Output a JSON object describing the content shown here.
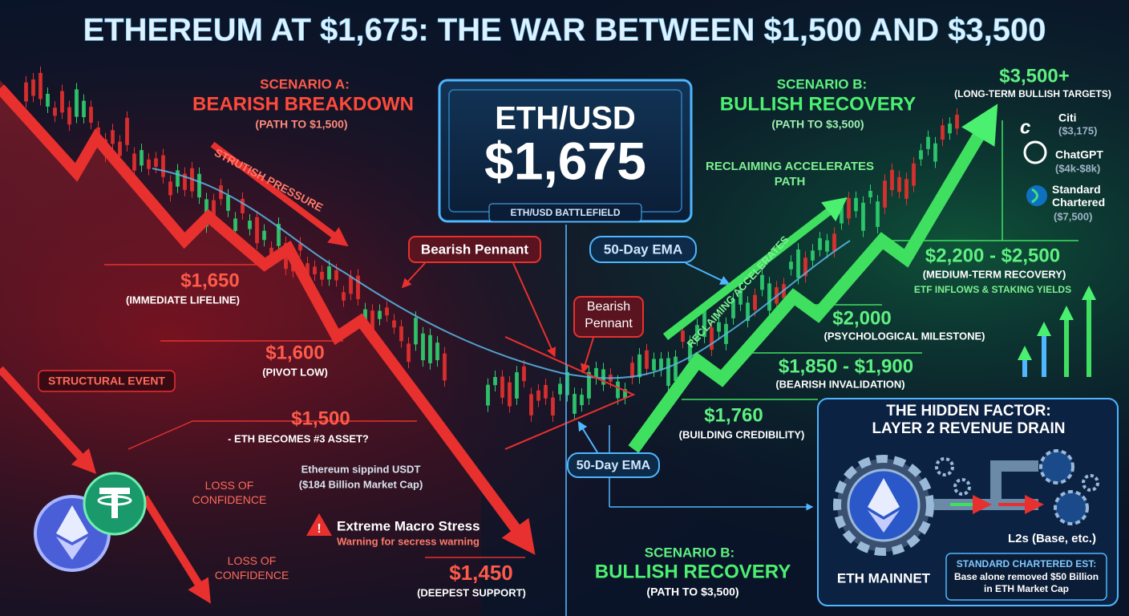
{
  "title": "ETHEREUM AT $1,675: THE WAR BETWEEN $1,500 AND $3,500",
  "scenario_a": {
    "label": "SCENARIO A:",
    "title": "BEARISH BREAKDOWN",
    "subtitle": "(PATH TO $1,500)",
    "pressure": "STRUTISH PRESSURE"
  },
  "price_box": {
    "pair": "ETH/USD",
    "price": "$1,675",
    "caption": "ETH/USD BATTLEFIELD"
  },
  "scenario_b_top": {
    "label": "SCENARIO B:",
    "title": "BULLISH RECOVERY",
    "subtitle": "(PATH TO $3,500)",
    "reclaiming": "RECLAIMING ACCELERATES PATH",
    "diagonal": "RECLAIMING ACCELERATES"
  },
  "targets": {
    "price": "$3,500+",
    "note": "(LONG-TERM BULLISH TARGETS)",
    "sources": [
      {
        "name": "Citi",
        "value": "($3,175)"
      },
      {
        "name": "ChatGPT",
        "value": "($4k-$8k)"
      },
      {
        "name": "Standard Chartered",
        "value": "($7,500)"
      }
    ]
  },
  "bull_levels": [
    {
      "price": "$2,200 - $2,500",
      "note": "(MEDIUM-TERM RECOVERY)"
    },
    {
      "price": "$2,000",
      "note": "(PSYCHOLOGICAL MILESTONE)"
    },
    {
      "price": "$1,850 - $1,900",
      "note": "(BEARISH INVALIDATION)"
    },
    {
      "price": "$1,760",
      "note": "(BUILDING CREDIBILITY)"
    }
  ],
  "etf_note": "ETF INFLOWS & STAKING YIELDS",
  "bear_levels": [
    {
      "price": "$1,650",
      "note": "(IMMEDIATE LIFELINE)"
    },
    {
      "price": "$1,600",
      "note": "(PIVOT LOW)"
    },
    {
      "price": "$1,500",
      "note": "- ETH BECOMES #3 ASSET?"
    },
    {
      "price": "$1,450",
      "note": "(DEEPEST SUPPORT)"
    }
  ],
  "usdt_note": {
    "line1": "Ethereum sippind USDT",
    "line2": "($184 Billion Market Cap)"
  },
  "callouts": {
    "pennant_1": "Bearish Pennant",
    "pennant_2": "Bearish Pennant",
    "ema_1": "50-Day EMA",
    "ema_2": "50-Day EMA",
    "structural_event": "STRUCTURAL EVENT",
    "loss_1": "LOSS OF CONFIDENCE",
    "loss_2": "LOSS OF CONFIDENCE"
  },
  "macro_stress": {
    "title": "Extreme Macro Stress",
    "subtitle": "Warning for secress warning"
  },
  "scenario_b_bottom": {
    "label": "SCENARIO B:",
    "title": "BULLISH RECOVERY",
    "subtitle": "(PATH TO $3,500)"
  },
  "hidden_factor": {
    "label": "THE HIDDEN FACTOR:",
    "title": "LAYER 2 REVENUE DRAIN",
    "mainnet": "ETH MAINNET",
    "l2": "L2s (Base, etc.)",
    "estimate_title": "STANDARD CHARTERED EST:",
    "estimate_text": "Base alone removed $50 Billion in ETH Market Cap"
  }
}
